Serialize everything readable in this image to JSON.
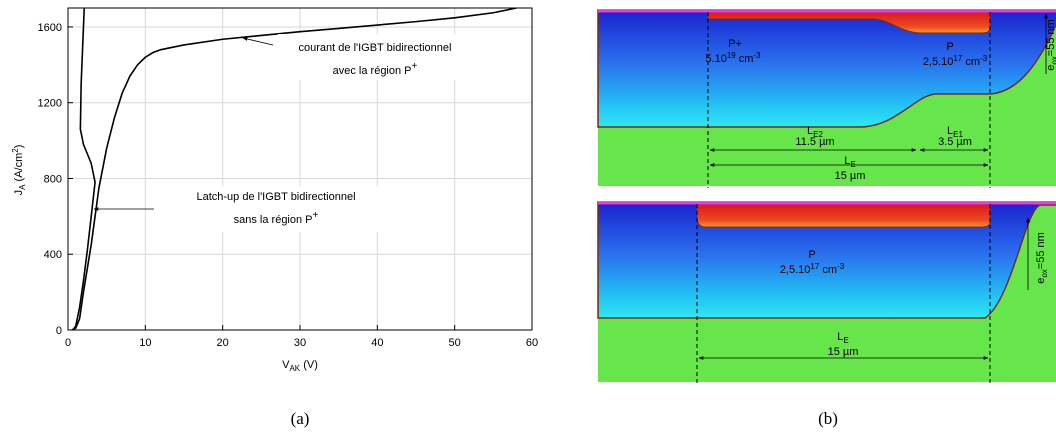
{
  "chart_data": {
    "type": "line",
    "x_label": [
      "V",
      "AK",
      " (V)"
    ],
    "y_label": [
      "J",
      "A",
      " (A/cm",
      "2",
      ")"
    ],
    "xlim": [
      0,
      60
    ],
    "ylim": [
      0,
      1700
    ],
    "xticks": [
      0,
      10,
      20,
      30,
      40,
      50,
      60
    ],
    "yticks": [
      0,
      400,
      800,
      1200,
      1600
    ],
    "grid": true,
    "series": [
      {
        "color": "#000000",
        "x": [
          0.5,
          1,
          1.5,
          2,
          3,
          4,
          5,
          6,
          7,
          8,
          9,
          10,
          11,
          12,
          15,
          20,
          25,
          30,
          35,
          40,
          45,
          50,
          55,
          58
        ],
        "values": [
          0,
          10,
          60,
          200,
          450,
          750,
          960,
          1120,
          1250,
          1340,
          1400,
          1440,
          1465,
          1480,
          1505,
          1535,
          1555,
          1575,
          1592,
          1610,
          1628,
          1648,
          1675,
          1700
        ]
      },
      {
        "color": "#000000",
        "x": [
          0.6,
          1,
          1.5,
          2,
          2.5,
          3,
          3.5,
          3,
          2,
          1.6,
          1.7,
          2.0,
          2.1
        ],
        "values": [
          0,
          20,
          120,
          260,
          420,
          600,
          780,
          880,
          980,
          1060,
          1300,
          1600,
          1700
        ]
      }
    ],
    "annotations": [
      [
        "courant de l'IGBT bidirectionnel",
        "avec la région P",
        "+"
      ],
      [
        "Latch-up de l'IGBT bidirectionnel",
        "sans la région P",
        "+"
      ]
    ]
  },
  "panel_b": {
    "top": {
      "p_plus": "P+",
      "p_plus_doping": [
        "5.10",
        "19",
        " cm",
        "-3"
      ],
      "p": "P",
      "p_doping": [
        "2,5.10",
        "17",
        " cm",
        "-3"
      ],
      "le2": [
        "L",
        "E2"
      ],
      "le2_len": "11.5 µm",
      "le1": [
        "L",
        "E1"
      ],
      "le1_len": "3.5 µm",
      "le": [
        "L",
        "E"
      ],
      "le_len": "15 µm",
      "eox": [
        "e",
        "ox",
        "=55 nm"
      ]
    },
    "bottom": {
      "p": "P",
      "p_doping": [
        "2,5.10",
        "17",
        " cm",
        "-3"
      ],
      "le": [
        "L",
        "E"
      ],
      "le_len": "15 µm",
      "eox": [
        "e",
        "ox",
        "=55 nm"
      ]
    }
  },
  "captions": [
    "(a)",
    "(b)"
  ]
}
